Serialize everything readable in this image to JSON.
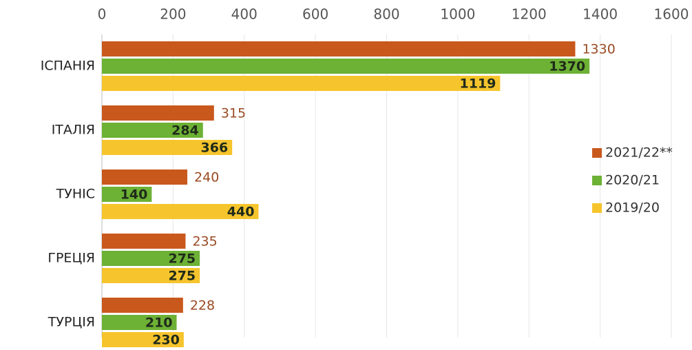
{
  "chart_data": {
    "type": "hbar",
    "categories": [
      "ІСПАНІЯ",
      "ІТАЛІЯ",
      "ТУНІС",
      "ГРЕЦІЯ",
      "ТУРЦІЯ"
    ],
    "series": [
      {
        "name": "2021/22**",
        "color": "#c9581d",
        "values": [
          1330,
          315,
          240,
          235,
          228
        ]
      },
      {
        "name": "2020/21",
        "color": "#6db135",
        "values": [
          1370,
          284,
          140,
          275,
          210
        ]
      },
      {
        "name": "2019/20",
        "color": "#f6c42c",
        "values": [
          1119,
          366,
          440,
          275,
          230
        ]
      }
    ],
    "xlim": [
      0,
      1600
    ],
    "xticks": [
      0,
      200,
      400,
      600,
      800,
      1000,
      1200,
      1400,
      1600
    ],
    "grid": true,
    "legend": "right"
  }
}
